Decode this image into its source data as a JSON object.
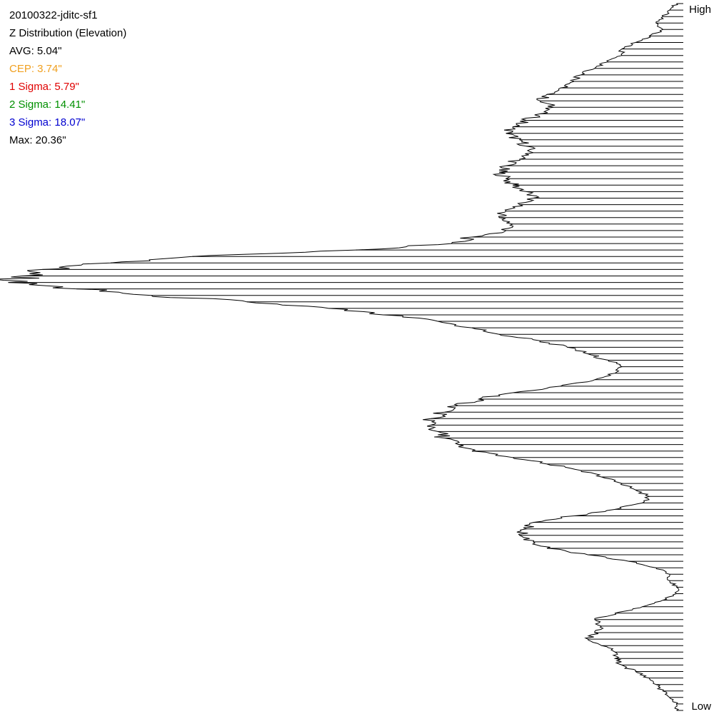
{
  "header": {
    "title": "20100322-jditc-sf1",
    "subtitle": "Z Distribution (Elevation)",
    "stats": [
      {
        "label": "AVG: 5.04\"",
        "color": "#000000"
      },
      {
        "label": "CEP: 3.74\"",
        "color": "#f0a020"
      },
      {
        "label": "1 Sigma: 5.79\"",
        "color": "#e00000"
      },
      {
        "label": "2 Sigma: 14.41\"",
        "color": "#009000"
      },
      {
        "label": "3 Sigma: 18.07\"",
        "color": "#0000d0"
      },
      {
        "label": "Max: 20.36\"",
        "color": "#000000"
      }
    ]
  },
  "chart_data": {
    "type": "bar",
    "orientation": "horizontal",
    "axis_top_label": "High",
    "axis_bottom_label": "Low",
    "grid": false,
    "categories_order": "high-to-low",
    "value_max": 1.0,
    "values": [
      0.01,
      0.02,
      0.03,
      0.04,
      0.03,
      0.05,
      0.07,
      0.09,
      0.09,
      0.11,
      0.13,
      0.15,
      0.16,
      0.18,
      0.2,
      0.21,
      0.19,
      0.21,
      0.23,
      0.25,
      0.26,
      0.24,
      0.23,
      0.22,
      0.24,
      0.26,
      0.27,
      0.26,
      0.25,
      0.23,
      0.22,
      0.24,
      0.26,
      0.27,
      0.25,
      0.26,
      0.31,
      0.34,
      0.48,
      0.72,
      0.84,
      0.94,
      0.97,
      0.99,
      0.89,
      0.78,
      0.64,
      0.52,
      0.44,
      0.36,
      0.31,
      0.27,
      0.21,
      0.17,
      0.14,
      0.11,
      0.09,
      0.1,
      0.13,
      0.18,
      0.25,
      0.3,
      0.33,
      0.35,
      0.37,
      0.37,
      0.36,
      0.35,
      0.33,
      0.31,
      0.25,
      0.2,
      0.15,
      0.12,
      0.09,
      0.07,
      0.05,
      0.06,
      0.1,
      0.16,
      0.22,
      0.23,
      0.24,
      0.22,
      0.2,
      0.14,
      0.08,
      0.04,
      0.02,
      0.02,
      0.01,
      0.01,
      0.03,
      0.06,
      0.1,
      0.13,
      0.12,
      0.13,
      0.14,
      0.12,
      0.1,
      0.1,
      0.09,
      0.07,
      0.05,
      0.04,
      0.03,
      0.02,
      0.01,
      0.01
    ]
  }
}
